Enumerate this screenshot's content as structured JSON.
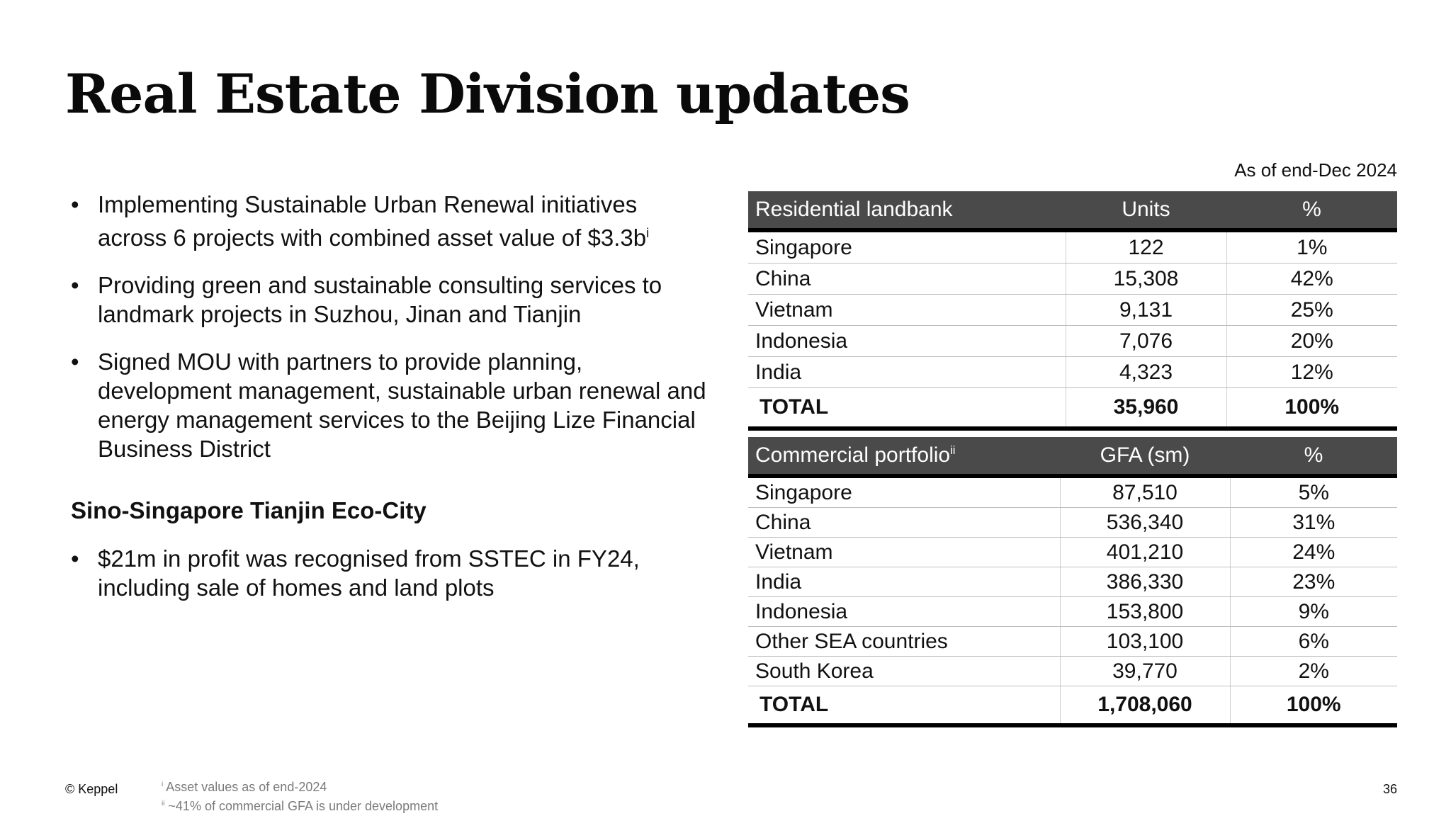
{
  "title": "Real Estate Division updates",
  "bullets": [
    {
      "text": "Implementing Sustainable Urban Renewal initiatives across 6 projects with combined asset value of $3.3b",
      "sup": "i"
    },
    {
      "text": "Providing green and sustainable consulting services to landmark projects in Suzhou, Jinan and Tianjin",
      "sup": ""
    },
    {
      "text": "Signed MOU with partners to provide planning, development management, sustainable urban renewal and energy management services to the Beijing Lize Financial Business District",
      "sup": ""
    }
  ],
  "bullet_glyph": "•",
  "subheading": "Sino-Singapore Tianjin Eco-City",
  "sub_bullets": [
    {
      "text": "$21m in profit was recognised from SSTEC in FY24, including sale of homes and land plots"
    }
  ],
  "as_of": "As of end-Dec 2024",
  "residential": {
    "headers": {
      "name": "Residential landbank",
      "value": "Units",
      "pct": "%"
    },
    "rows": [
      {
        "name": "Singapore",
        "value": "122",
        "pct": "1%"
      },
      {
        "name": "China",
        "value": "15,308",
        "pct": "42%"
      },
      {
        "name": "Vietnam",
        "value": "9,131",
        "pct": "25%"
      },
      {
        "name": "Indonesia",
        "value": "7,076",
        "pct": "20%"
      },
      {
        "name": "India",
        "value": "4,323",
        "pct": "12%"
      }
    ],
    "total": {
      "name": "TOTAL",
      "value": "35,960",
      "pct": "100%"
    }
  },
  "commercial": {
    "headers": {
      "name": "Commercial portfolio",
      "name_sup": "ii",
      "value": "GFA (sm)",
      "pct": "%"
    },
    "rows": [
      {
        "name": "Singapore",
        "value": "87,510",
        "pct": "5%"
      },
      {
        "name": "China",
        "value": "536,340",
        "pct": "31%"
      },
      {
        "name": "Vietnam",
        "value": "401,210",
        "pct": "24%"
      },
      {
        "name": "India",
        "value": "386,330",
        "pct": "23%"
      },
      {
        "name": "Indonesia",
        "value": "153,800",
        "pct": "9%"
      },
      {
        "name": "Other SEA countries",
        "value": "103,100",
        "pct": "6%"
      },
      {
        "name": "South Korea",
        "value": "39,770",
        "pct": "2%"
      }
    ],
    "total": {
      "name": "TOTAL",
      "value": "1,708,060",
      "pct": "100%"
    }
  },
  "footer": {
    "copyright": "© Keppel",
    "footnotes": [
      {
        "sup": "i",
        "text": "Asset values as of end-2024"
      },
      {
        "sup": "ii",
        "text": "~41% of commercial GFA is under development"
      }
    ],
    "page_number": "36"
  }
}
